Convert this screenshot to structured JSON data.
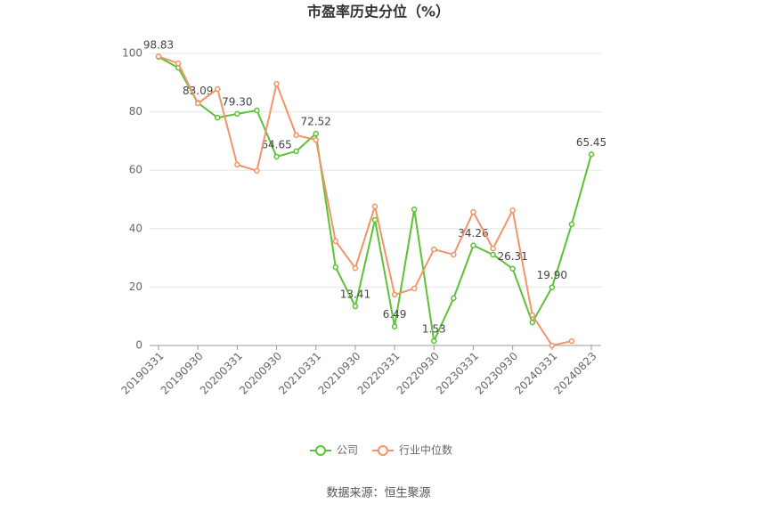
{
  "chart_data": {
    "type": "line",
    "title": "市盈率历史分位（%）",
    "categories": [
      "20190331",
      null,
      "20190930",
      null,
      "20200331",
      null,
      "20200930",
      null,
      "20210331",
      null,
      "20210930",
      null,
      "20220331",
      null,
      "20220930",
      null,
      "20230331",
      null,
      "20230930",
      null,
      "20240331",
      null,
      "20240823"
    ],
    "series": [
      {
        "name": "公司",
        "color": "#5cc234",
        "values": [
          98.83,
          95.1,
          83.09,
          78.0,
          79.3,
          80.5,
          64.65,
          66.5,
          72.52,
          26.8,
          13.41,
          43.0,
          6.49,
          46.6,
          1.53,
          16.2,
          34.26,
          31.1,
          26.31,
          7.9,
          19.9,
          41.5,
          65.45
        ],
        "value_labels": [
          "98.83",
          null,
          "83.09",
          null,
          "79.30",
          null,
          "64.65",
          null,
          "72.52",
          null,
          "13.41",
          null,
          "6.49",
          null,
          "1.53",
          null,
          "34.26",
          null,
          "26.31",
          null,
          "19.90",
          null,
          "65.45"
        ]
      },
      {
        "name": "行业中位数",
        "color": "#f29468",
        "values": [
          99.0,
          96.6,
          82.9,
          87.8,
          61.9,
          59.8,
          89.6,
          72.0,
          70.4,
          35.7,
          26.5,
          47.6,
          17.4,
          19.5,
          32.9,
          31.1,
          45.7,
          33.2,
          46.3,
          10.4,
          0,
          1.5,
          null
        ]
      }
    ],
    "ylim": [
      0,
      100
    ],
    "yticks": [
      0,
      20,
      40,
      60,
      80,
      100
    ],
    "grid": true,
    "legend": "bottom",
    "source": "数据来源：恒生聚源"
  }
}
